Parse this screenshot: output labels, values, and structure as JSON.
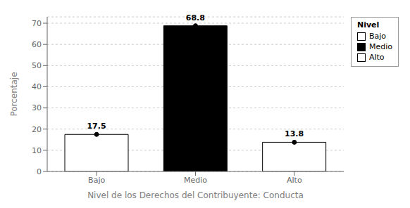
{
  "chart_data": {
    "type": "bar",
    "categories": [
      "Bajo",
      "Medio",
      "Alto"
    ],
    "values": [
      17.5,
      68.8,
      13.8
    ],
    "colors": [
      "white",
      "black",
      "white"
    ],
    "xlabel": "Nivel de los Derechos del Contribuyente: Conducta",
    "ylabel": "Porcentaje",
    "ylim": [
      0,
      73
    ],
    "yticks": [
      0,
      10,
      20,
      30,
      40,
      50,
      60,
      70
    ],
    "grid": true,
    "legend": "upper right",
    "legend_title": "Nivel",
    "data_labels": true,
    "marker": "circle"
  }
}
